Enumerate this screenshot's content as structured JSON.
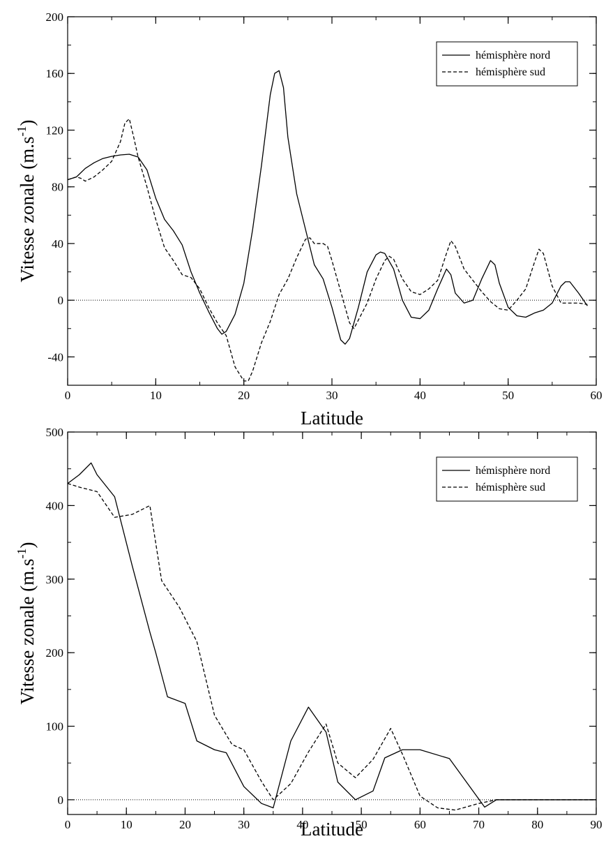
{
  "chart_data": [
    {
      "type": "line",
      "xlabel": "Latitude",
      "ylabel": "Vitesse zonale (m.s",
      "ylabel_superscript": "-1",
      "ylabel_close": ")",
      "xlim": [
        0,
        60
      ],
      "ylim": [
        -60,
        200
      ],
      "xticks": [
        0,
        10,
        20,
        30,
        40,
        50,
        60
      ],
      "yticks": [
        -40,
        0,
        40,
        80,
        120,
        160,
        200
      ],
      "xtick_labels": [
        "0",
        "10",
        "20",
        "30",
        "40",
        "50",
        "60"
      ],
      "ytick_labels": [
        "-40",
        "0",
        "40",
        "80",
        "120",
        "160",
        "200"
      ],
      "x_minor_step": 5,
      "y_minor_step": 20,
      "zero_line": true,
      "grid": false,
      "legend_position": "top-right",
      "series": [
        {
          "name": "hémisphère nord",
          "style": "solid",
          "points": [
            [
              0,
              85
            ],
            [
              0.5,
              86
            ],
            [
              1,
              87
            ],
            [
              2,
              93
            ],
            [
              3,
              97
            ],
            [
              4,
              100
            ],
            [
              5,
              101.5
            ],
            [
              6,
              102.5
            ],
            [
              7,
              103
            ],
            [
              8,
              101
            ],
            [
              9,
              92
            ],
            [
              10,
              72
            ],
            [
              11,
              57
            ],
            [
              12,
              49
            ],
            [
              13,
              39
            ],
            [
              14,
              20
            ],
            [
              15,
              5
            ],
            [
              16,
              -8
            ],
            [
              17,
              -20
            ],
            [
              17.5,
              -24
            ],
            [
              18,
              -22
            ],
            [
              19,
              -10
            ],
            [
              20,
              12
            ],
            [
              21,
              50
            ],
            [
              22,
              95
            ],
            [
              23,
              145
            ],
            [
              23.5,
              160
            ],
            [
              24,
              162
            ],
            [
              24.5,
              150
            ],
            [
              25,
              115
            ],
            [
              26,
              75
            ],
            [
              27,
              50
            ],
            [
              28,
              25
            ],
            [
              29,
              15
            ],
            [
              30,
              -5
            ],
            [
              31,
              -28
            ],
            [
              31.5,
              -31
            ],
            [
              32,
              -27
            ],
            [
              33,
              -5
            ],
            [
              34,
              20
            ],
            [
              35,
              32
            ],
            [
              35.5,
              34
            ],
            [
              36,
              33
            ],
            [
              37,
              22
            ],
            [
              38,
              0
            ],
            [
              39,
              -12
            ],
            [
              40,
              -13
            ],
            [
              41,
              -7
            ],
            [
              42,
              8
            ],
            [
              43,
              22
            ],
            [
              43.5,
              18
            ],
            [
              44,
              5
            ],
            [
              45,
              -2
            ],
            [
              46,
              0
            ],
            [
              47,
              15
            ],
            [
              48,
              28
            ],
            [
              48.5,
              25
            ],
            [
              49,
              12
            ],
            [
              50,
              -5
            ],
            [
              51,
              -11
            ],
            [
              52,
              -12
            ],
            [
              53,
              -9
            ],
            [
              54,
              -7
            ],
            [
              55,
              -2
            ],
            [
              56,
              10
            ],
            [
              56.5,
              13
            ],
            [
              57,
              13
            ],
            [
              58,
              5
            ],
            [
              59,
              -4
            ]
          ]
        },
        {
          "name": "hémisphère sud",
          "style": "dashed",
          "points": [
            [
              0,
              85
            ],
            [
              1,
              87
            ],
            [
              1.5,
              86
            ],
            [
              2,
              84
            ],
            [
              3,
              87
            ],
            [
              4,
              92
            ],
            [
              5,
              98
            ],
            [
              6,
              112
            ],
            [
              6.5,
              125
            ],
            [
              7,
              128
            ],
            [
              7.5,
              115
            ],
            [
              8,
              101
            ],
            [
              9,
              80
            ],
            [
              10,
              57
            ],
            [
              11,
              37
            ],
            [
              12,
              28
            ],
            [
              13,
              18
            ],
            [
              14,
              16
            ],
            [
              15,
              8
            ],
            [
              16,
              -5
            ],
            [
              17,
              -16
            ],
            [
              18,
              -25
            ],
            [
              19,
              -47
            ],
            [
              20,
              -57
            ],
            [
              20.5,
              -57
            ],
            [
              21,
              -50
            ],
            [
              22,
              -30
            ],
            [
              23,
              -15
            ],
            [
              24,
              4
            ],
            [
              25,
              15
            ],
            [
              26,
              30
            ],
            [
              27,
              43
            ],
            [
              27.5,
              44
            ],
            [
              28,
              40
            ],
            [
              29,
              40
            ],
            [
              29.5,
              38
            ],
            [
              30,
              28
            ],
            [
              31,
              6
            ],
            [
              32,
              -16
            ],
            [
              32.5,
              -20
            ],
            [
              33,
              -14
            ],
            [
              34,
              -2
            ],
            [
              35,
              15
            ],
            [
              36,
              28
            ],
            [
              36.5,
              31
            ],
            [
              37,
              29
            ],
            [
              38,
              15
            ],
            [
              39,
              6
            ],
            [
              40,
              4
            ],
            [
              41,
              8
            ],
            [
              42,
              14
            ],
            [
              43,
              33
            ],
            [
              43.5,
              42
            ],
            [
              44,
              38
            ],
            [
              45,
              22
            ],
            [
              46,
              14
            ],
            [
              47,
              6
            ],
            [
              48,
              -1
            ],
            [
              49,
              -6
            ],
            [
              50,
              -7
            ],
            [
              51,
              0
            ],
            [
              52,
              8
            ],
            [
              53,
              27
            ],
            [
              53.5,
              36
            ],
            [
              54,
              33
            ],
            [
              55,
              10
            ],
            [
              56,
              -2
            ],
            [
              57,
              -2
            ],
            [
              58,
              -2
            ],
            [
              59,
              -3
            ]
          ]
        }
      ]
    },
    {
      "type": "line",
      "xlabel": "Latitude",
      "ylabel": "Vitesse zonale (m.s",
      "ylabel_superscript": "-1",
      "ylabel_close": ")",
      "xlim": [
        0,
        90
      ],
      "ylim": [
        -20,
        500
      ],
      "xticks": [
        0,
        10,
        20,
        30,
        40,
        50,
        60,
        70,
        80,
        90
      ],
      "yticks": [
        0,
        100,
        200,
        300,
        400,
        500
      ],
      "xtick_labels": [
        "0",
        "10",
        "20",
        "30",
        "40",
        "50",
        "60",
        "70",
        "80",
        "90"
      ],
      "ytick_labels": [
        "0",
        "100",
        "200",
        "300",
        "400",
        "500"
      ],
      "x_minor_step": 5,
      "y_minor_step": 50,
      "zero_line": true,
      "grid": false,
      "legend_position": "top-right",
      "series": [
        {
          "name": "hémisphère nord",
          "style": "solid",
          "points": [
            [
              0,
              430
            ],
            [
              2,
              442
            ],
            [
              4,
              458
            ],
            [
              5,
              442
            ],
            [
              8,
              412
            ],
            [
              11,
              318
            ],
            [
              14,
              228
            ],
            [
              15,
              200
            ],
            [
              17,
              140
            ],
            [
              20,
              131
            ],
            [
              22,
              80
            ],
            [
              25,
              68
            ],
            [
              27,
              64
            ],
            [
              30,
              18
            ],
            [
              33,
              -5
            ],
            [
              35,
              -11
            ],
            [
              38,
              80
            ],
            [
              41,
              126
            ],
            [
              44,
              92
            ],
            [
              46,
              24
            ],
            [
              49,
              0
            ],
            [
              52,
              12
            ],
            [
              54,
              57
            ],
            [
              57,
              68
            ],
            [
              60,
              68
            ],
            [
              65,
              56
            ],
            [
              71,
              -10
            ],
            [
              73,
              0
            ],
            [
              90,
              0
            ]
          ]
        },
        {
          "name": "hémisphère sud",
          "style": "dashed",
          "points": [
            [
              0,
              430
            ],
            [
              2,
              425
            ],
            [
              5,
              419
            ],
            [
              8,
              384
            ],
            [
              11,
              388
            ],
            [
              14,
              400
            ],
            [
              16,
              298
            ],
            [
              19,
              262
            ],
            [
              22,
              215
            ],
            [
              25,
              115
            ],
            [
              28,
              75
            ],
            [
              30,
              68
            ],
            [
              33,
              25
            ],
            [
              35,
              0
            ],
            [
              38,
              22
            ],
            [
              41,
              65
            ],
            [
              44,
              103
            ],
            [
              46,
              50
            ],
            [
              49,
              30
            ],
            [
              52,
              55
            ],
            [
              55,
              97
            ],
            [
              57,
              62
            ],
            [
              60,
              5
            ],
            [
              63,
              -11
            ],
            [
              66,
              -14
            ],
            [
              70,
              -5
            ],
            [
              73,
              0
            ],
            [
              90,
              0
            ]
          ]
        }
      ]
    }
  ]
}
